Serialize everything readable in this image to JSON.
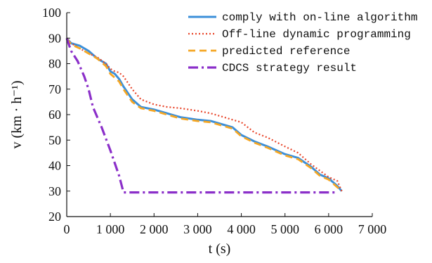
{
  "chart_data": {
    "type": "line",
    "xlabel": "t  (s)",
    "ylabel": "v (km · h⁻¹)",
    "xlim": [
      0,
      7000
    ],
    "ylim": [
      20,
      100
    ],
    "x_ticks": [
      "0",
      "1 000",
      "2 000",
      "3 000",
      "4 000",
      "5 000",
      "6 000",
      "7 000"
    ],
    "x_tick_values": [
      0,
      1000,
      2000,
      3000,
      4000,
      5000,
      6000,
      7000
    ],
    "y_ticks": [
      "20",
      "30",
      "40",
      "50",
      "60",
      "70",
      "80",
      "90",
      "100"
    ],
    "y_tick_values": [
      20,
      30,
      40,
      50,
      60,
      70,
      80,
      90,
      100
    ],
    "grid": false,
    "legend_position": "top-right",
    "series": [
      {
        "name": "comply with on-line algorithm",
        "color": "#3b8fd9",
        "style": "solid",
        "x": [
          0,
          100,
          300,
          500,
          700,
          900,
          1000,
          1100,
          1200,
          1300,
          1500,
          1700,
          2000,
          2300,
          2600,
          3000,
          3300,
          3600,
          3800,
          4000,
          4300,
          4600,
          5000,
          5300,
          5600,
          5800,
          6000,
          6200,
          6300
        ],
        "y": [
          90,
          88,
          87,
          85,
          82,
          80,
          77,
          76,
          74,
          71,
          66,
          63,
          62,
          60.5,
          59,
          58,
          57.5,
          56,
          55,
          52,
          49.5,
          47.5,
          44.5,
          43,
          39.5,
          36.5,
          35,
          32,
          30
        ]
      },
      {
        "name": "Off-line dynamic programming",
        "color": "#e8452a",
        "style": "dotted",
        "x": [
          0,
          100,
          300,
          500,
          700,
          900,
          1000,
          1100,
          1200,
          1300,
          1500,
          1700,
          2000,
          2300,
          2600,
          3000,
          3300,
          3600,
          3800,
          4000,
          4300,
          4600,
          5000,
          5300,
          5600,
          5800,
          6000,
          6200,
          6300
        ],
        "y": [
          89,
          88,
          86,
          84,
          82.5,
          80,
          78,
          77,
          76.5,
          75,
          70,
          66,
          64,
          63,
          62.5,
          61.5,
          60.5,
          59,
          58,
          57,
          53,
          51,
          47.5,
          45,
          40.5,
          38,
          35.5,
          34,
          30
        ]
      },
      {
        "name": "predicted reference",
        "color": "#f5a623",
        "style": "dashed",
        "x": [
          0,
          100,
          300,
          500,
          700,
          900,
          1000,
          1100,
          1200,
          1300,
          1500,
          1700,
          2000,
          2300,
          2600,
          3000,
          3300,
          3600,
          3800,
          4000,
          4300,
          4600,
          5000,
          5300,
          5600,
          5800,
          6000,
          6200,
          6300
        ],
        "y": [
          90,
          87.5,
          86,
          84,
          82,
          79,
          76,
          74.5,
          73,
          70,
          65,
          62.5,
          61.5,
          60,
          58.5,
          57.5,
          57,
          55.5,
          54.5,
          51.5,
          49,
          47,
          44,
          42.5,
          39,
          36,
          34.5,
          31.5,
          30
        ]
      },
      {
        "name": "CDCS strategy result",
        "color": "#8b2fc9",
        "style": "dashdot",
        "x": [
          0,
          100,
          250,
          400,
          500,
          600,
          800,
          1000,
          1200,
          1300,
          1500,
          2000,
          3000,
          4000,
          5000,
          6000,
          6200
        ],
        "y": [
          90,
          85,
          81,
          75,
          70,
          63,
          55,
          46,
          36,
          29.5,
          29.5,
          29.5,
          29.5,
          29.5,
          29.5,
          29.5,
          29.5
        ]
      }
    ]
  }
}
